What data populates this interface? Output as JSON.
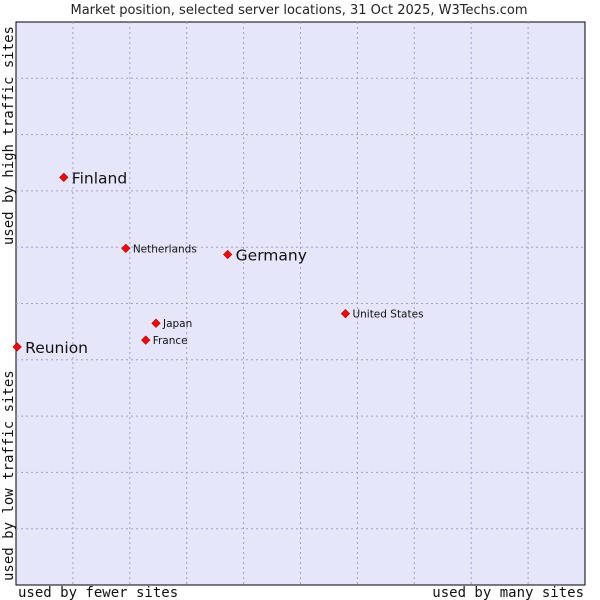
{
  "chart_data": {
    "type": "scatter",
    "title": "Market position, selected server locations, 31 Oct 2025, W3Techs.com",
    "xlabel_left": "used by fewer sites",
    "xlabel_right": "used by many sites",
    "ylabel_bottom": "used by low traffic sites",
    "ylabel_top": "used by high traffic sites",
    "xlim": [
      0,
      10
    ],
    "ylim": [
      0,
      10
    ],
    "grid": true,
    "marker_color": "#ff0000",
    "plot_background": "#e6e6fa",
    "points": [
      {
        "name": "Finland",
        "x": 0.84,
        "y": 7.24,
        "size": "large"
      },
      {
        "name": "Netherlands",
        "x": 1.93,
        "y": 5.98,
        "size": "small"
      },
      {
        "name": "Germany",
        "x": 3.72,
        "y": 5.87,
        "size": "large"
      },
      {
        "name": "United States",
        "x": 5.79,
        "y": 4.82,
        "size": "small"
      },
      {
        "name": "Japan",
        "x": 2.46,
        "y": 4.65,
        "size": "small"
      },
      {
        "name": "France",
        "x": 2.28,
        "y": 4.35,
        "size": "small"
      },
      {
        "name": "Reunion",
        "x": 0.02,
        "y": 4.23,
        "size": "large"
      }
    ]
  }
}
